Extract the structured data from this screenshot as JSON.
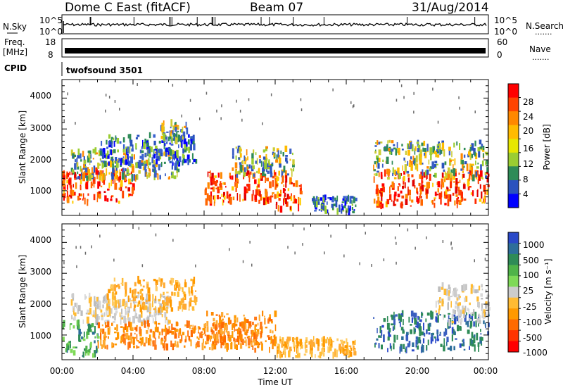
{
  "header": {
    "station": "Dome C East (fitACF)",
    "beam": "Beam 07",
    "date": "31/Aug/2014"
  },
  "aux_panels": {
    "nsky_label": "N.Sky",
    "nsearch_label": "N.Search",
    "nsky_ticks": [
      "10^5",
      "10^0"
    ],
    "nsearch_ticks": [
      "10^5",
      "10^0"
    ],
    "freq_label_1": "Freq.",
    "freq_label_2": "[MHz]",
    "freq_ticks": [
      "18",
      "8"
    ],
    "nave_label": "Nave",
    "nave_ticks": [
      "60",
      "0"
    ],
    "cpid_label": "CPID",
    "cpid_value": "twofsound 3501",
    "dots": "......."
  },
  "axes": {
    "ylabel": "Slant Range [km]",
    "xlabel": "Time UT",
    "x_ticks": [
      "00:00",
      "04:00",
      "08:00",
      "12:00",
      "16:00",
      "20:00",
      "00:00"
    ],
    "y_ticks": [
      "1000",
      "2000",
      "3000",
      "4000"
    ]
  },
  "colorbars": {
    "power": {
      "label": "Power [dB]",
      "ticks": [
        "28",
        "24",
        "20",
        "16",
        "12",
        "8",
        "4"
      ],
      "colors": [
        "#ff0000",
        "#ff4400",
        "#ff8800",
        "#ffbb00",
        "#e6e600",
        "#9acd32",
        "#2e8b57",
        "#2a52be",
        "#0000ff"
      ]
    },
    "velocity": {
      "label": "Velocity [m s⁻¹]",
      "ticks": [
        "1000",
        "500",
        "100",
        "25",
        "-25",
        "-100",
        "-500",
        "-1000"
      ],
      "colors": [
        "#2a49c8",
        "#2d6e9a",
        "#2e8b57",
        "#4fb349",
        "#7ed957",
        "#cccccc",
        "#ffbb33",
        "#ff9900",
        "#ff6a00",
        "#ff3300",
        "#ff0000"
      ]
    }
  },
  "chart_data": [
    {
      "type": "heatmap",
      "title": "Power",
      "xlabel": "Time UT",
      "ylabel": "Slant Range [km]",
      "xlim": [
        0,
        24
      ],
      "ylim": [
        200,
        4600
      ],
      "colorbar_label": "Power [dB]",
      "scatter_blocks": [
        {
          "t": [
            0.0,
            4.0
          ],
          "r": [
            600,
            1700
          ],
          "level": "high"
        },
        {
          "t": [
            0.5,
            6.5
          ],
          "r": [
            1400,
            2300
          ],
          "level": "mid"
        },
        {
          "t": [
            2.0,
            7.5
          ],
          "r": [
            1800,
            2800
          ],
          "level": "low"
        },
        {
          "t": [
            5.5,
            7.0
          ],
          "r": [
            2600,
            3200
          ],
          "level": "mid"
        },
        {
          "t": [
            8.0,
            12.0
          ],
          "r": [
            600,
            1600
          ],
          "level": "high"
        },
        {
          "t": [
            9.5,
            13.0
          ],
          "r": [
            1500,
            2400
          ],
          "level": "mid"
        },
        {
          "t": [
            12.0,
            13.5
          ],
          "r": [
            400,
            1400
          ],
          "level": "high"
        },
        {
          "t": [
            14.0,
            16.5
          ],
          "r": [
            300,
            800
          ],
          "level": "low"
        },
        {
          "t": [
            17.5,
            24.0
          ],
          "r": [
            500,
            1600
          ],
          "level": "high"
        },
        {
          "t": [
            17.5,
            24.0
          ],
          "r": [
            1400,
            2600
          ],
          "level": "mid"
        }
      ]
    },
    {
      "type": "heatmap",
      "title": "Velocity",
      "xlabel": "Time UT",
      "ylabel": "Slant Range [km]",
      "xlim": [
        0,
        24
      ],
      "ylim": [
        200,
        4600
      ],
      "colorbar_label": "Velocity [m s⁻¹]",
      "scatter_blocks": [
        {
          "t": [
            0.0,
            2.0
          ],
          "r": [
            300,
            1400
          ],
          "level": "pos_med"
        },
        {
          "t": [
            0.5,
            6.0
          ],
          "r": [
            1400,
            2300
          ],
          "level": "near_zero"
        },
        {
          "t": [
            2.0,
            11.0
          ],
          "r": [
            600,
            1400
          ],
          "level": "neg_low"
        },
        {
          "t": [
            2.5,
            7.5
          ],
          "r": [
            1800,
            2800
          ],
          "level": "neg_small"
        },
        {
          "t": [
            8.0,
            12.0
          ],
          "r": [
            500,
            1700
          ],
          "level": "neg_low"
        },
        {
          "t": [
            12.0,
            16.5
          ],
          "r": [
            300,
            900
          ],
          "level": "neg_small"
        },
        {
          "t": [
            17.5,
            24.0
          ],
          "r": [
            500,
            1700
          ],
          "level": "pos_high"
        },
        {
          "t": [
            21.0,
            24.0
          ],
          "r": [
            1400,
            2600
          ],
          "level": "near_zero"
        }
      ]
    }
  ]
}
